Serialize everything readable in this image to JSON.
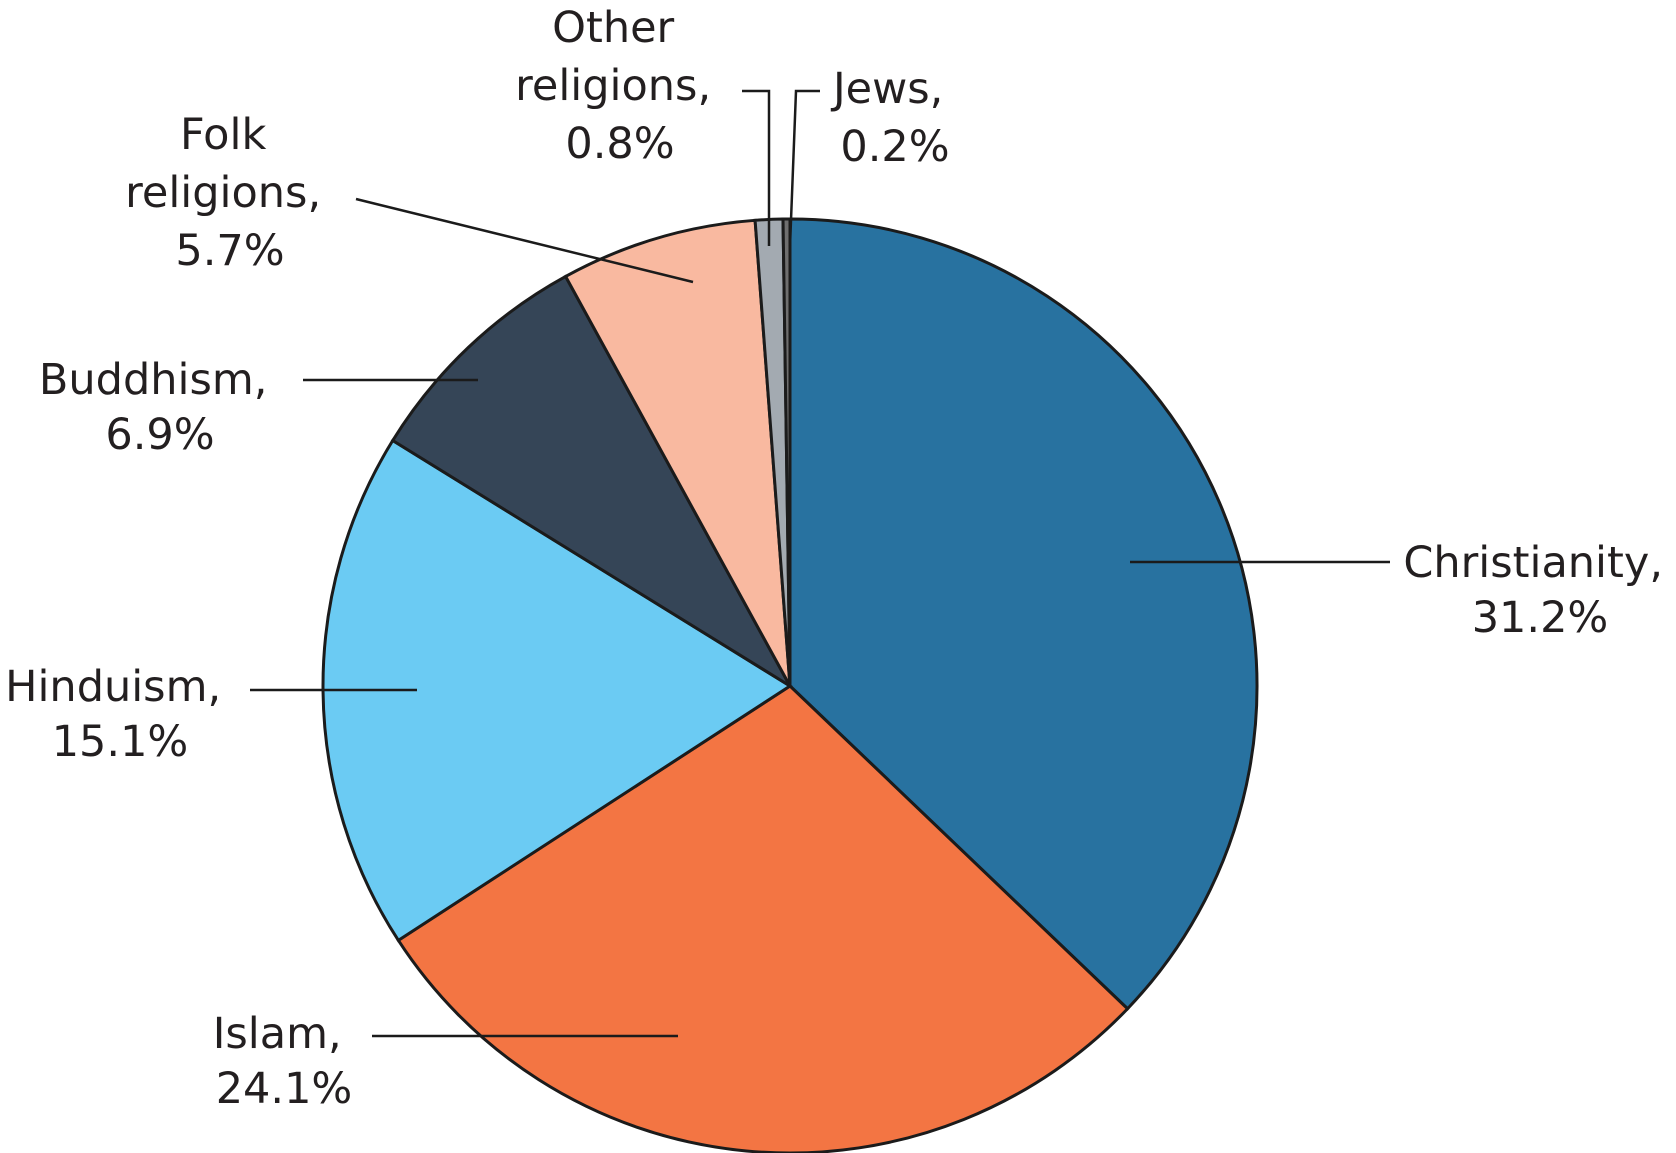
{
  "chart_data": {
    "type": "pie",
    "title": "",
    "start": "top",
    "direction": "clockwise",
    "slices": [
      {
        "name": "Christianity,",
        "value": 31.2,
        "label": "31.2%",
        "color": "#2872a0"
      },
      {
        "name": "Islam,",
        "value": 24.1,
        "label": "24.1%",
        "color": "#f37543"
      },
      {
        "name": "Hinduism,",
        "value": 15.1,
        "label": "15.1%",
        "color": "#6bcbf3"
      },
      {
        "name": "Buddhism,",
        "value": 6.9,
        "label": "6.9%",
        "color": "#354557"
      },
      {
        "name": "Folk religions,",
        "value": 5.7,
        "label": "5.7%",
        "color": "#f9b9a0"
      },
      {
        "name": "Other religions,",
        "value": 0.8,
        "label": "0.8%",
        "color": "#a3aab1"
      },
      {
        "name": "Jews,",
        "value": 0.2,
        "label": "0.2%",
        "color": "#6f6f6f"
      }
    ]
  }
}
